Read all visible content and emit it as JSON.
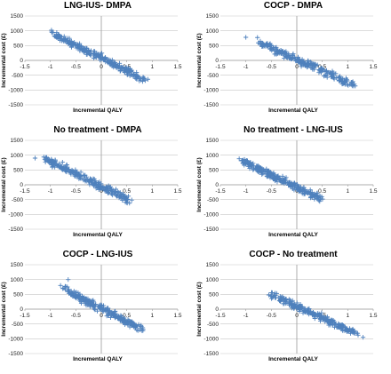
{
  "chart_data": [
    {
      "type": "scatter",
      "title": "LNG-IUS- DMPA",
      "xlabel": "Incremental QALY",
      "ylabel": "Incremental cost (£)",
      "xlim": [
        -1.5,
        1.5
      ],
      "ylim": [
        -1500,
        1500
      ],
      "xticks": [
        "-1.5",
        "-1",
        "-0.5",
        "0",
        "0.5",
        "1",
        "1.5"
      ],
      "yticks": [
        "1500",
        "1000",
        "500",
        "0",
        "-500",
        "-1000",
        "-1500"
      ],
      "marker": "+",
      "color": "#4f81bd",
      "trend": {
        "x_from": -0.95,
        "x_to": 0.85,
        "slope": -850,
        "intercept": 80,
        "spread_x": 0.18,
        "spread_y": 90
      },
      "points": [
        [
          -0.92,
          820
        ],
        [
          -0.75,
          690
        ],
        [
          -0.6,
          560
        ],
        [
          -0.4,
          400
        ],
        [
          -0.2,
          240
        ],
        [
          0.0,
          60
        ],
        [
          0.2,
          -100
        ],
        [
          0.4,
          -250
        ],
        [
          0.55,
          -380
        ],
        [
          0.7,
          -520
        ],
        [
          0.82,
          -560
        ]
      ]
    },
    {
      "type": "scatter",
      "title": "COCP - DMPA",
      "xlabel": "Incremental QALY",
      "ylabel": "Incremental cost (£)",
      "xlim": [
        -1.5,
        1.5
      ],
      "ylim": [
        -1500,
        1500
      ],
      "xticks": [
        "-1.5",
        "-1",
        "-0.5",
        "0",
        "0.5",
        "1",
        "1.5"
      ],
      "yticks": [
        "1500",
        "1000",
        "500",
        "0",
        "-500",
        "-1000",
        "-1500"
      ],
      "marker": "+",
      "color": "#4f81bd",
      "trend": {
        "x_from": -0.7,
        "x_to": 1.15,
        "slope": -780,
        "intercept": 30,
        "spread_x": 0.18,
        "spread_y": 90
      },
      "points": [
        [
          -1.0,
          780
        ],
        [
          -0.65,
          560
        ],
        [
          -0.4,
          380
        ],
        [
          -0.2,
          220
        ],
        [
          0.0,
          40
        ],
        [
          0.3,
          -200
        ],
        [
          0.6,
          -440
        ],
        [
          0.9,
          -620
        ],
        [
          1.1,
          -720
        ]
      ]
    },
    {
      "type": "scatter",
      "title": "No treatment - DMPA",
      "xlabel": "Incremental QALY",
      "ylabel": "Incremental cost (£)",
      "xlim": [
        -1.5,
        1.5
      ],
      "ylim": [
        -1500,
        1500
      ],
      "xticks": [
        "-1.5",
        "-1",
        "-0.5",
        "0",
        "0.5",
        "1",
        "1.5"
      ],
      "yticks": [
        "1500",
        "1000",
        "500",
        "0",
        "-500",
        "-1000",
        "-1500"
      ],
      "marker": "+",
      "color": "#4f81bd",
      "trend": {
        "x_from": -1.1,
        "x_to": 0.55,
        "slope": -850,
        "intercept": -60,
        "spread_x": 0.18,
        "spread_y": 90
      },
      "points": [
        [
          -1.3,
          900
        ],
        [
          -1.05,
          800
        ],
        [
          -0.8,
          620
        ],
        [
          -0.5,
          370
        ],
        [
          -0.2,
          120
        ],
        [
          0.0,
          -50
        ],
        [
          0.25,
          -280
        ],
        [
          0.45,
          -460
        ],
        [
          0.5,
          -600
        ]
      ]
    },
    {
      "type": "scatter",
      "title": "No treatment - LNG-IUS",
      "xlabel": "Incremental QALY",
      "ylabel": "Incremental cost (£)",
      "xlim": [
        -1.5,
        1.5
      ],
      "ylim": [
        -1500,
        1500
      ],
      "xticks": [
        "-1.5",
        "-1",
        "-0.5",
        "0",
        "0.5",
        "1",
        "1.5"
      ],
      "yticks": [
        "1500",
        "1000",
        "500",
        "0",
        "-500",
        "-1000",
        "-1500"
      ],
      "marker": "+",
      "color": "#4f81bd",
      "trend": {
        "x_from": -1.05,
        "x_to": 0.45,
        "slope": -830,
        "intercept": -90,
        "spread_x": 0.18,
        "spread_y": 90
      },
      "points": [
        [
          -1.0,
          800
        ],
        [
          -0.75,
          560
        ],
        [
          -0.5,
          330
        ],
        [
          -0.25,
          110
        ],
        [
          0.0,
          -100
        ],
        [
          0.2,
          -270
        ],
        [
          0.4,
          -420
        ],
        [
          0.45,
          -560
        ]
      ]
    },
    {
      "type": "scatter",
      "title": "COCP - LNG-IUS",
      "xlabel": "Incremental QALY",
      "ylabel": "Incremental cost (£)",
      "xlim": [
        -1.5,
        1.5
      ],
      "ylim": [
        -1500,
        1500
      ],
      "xticks": [
        "-1.5",
        "-1",
        "-0.5",
        "0",
        "0.5",
        "1",
        "1.5"
      ],
      "yticks": [
        "1500",
        "1000",
        "500",
        "0",
        "-500",
        "-1000",
        "-1500"
      ],
      "marker": "+",
      "color": "#4f81bd",
      "trend": {
        "x_from": -0.7,
        "x_to": 0.75,
        "slope": -880,
        "intercept": 20,
        "spread_x": 0.18,
        "spread_y": 90
      },
      "points": [
        [
          -0.8,
          800
        ],
        [
          -0.65,
          1000
        ],
        [
          -0.5,
          560
        ],
        [
          -0.25,
          280
        ],
        [
          0.0,
          30
        ],
        [
          0.25,
          -200
        ],
        [
          0.5,
          -420
        ],
        [
          0.65,
          -560
        ],
        [
          0.72,
          -720
        ]
      ]
    },
    {
      "type": "scatter",
      "title": "COCP - No treatment",
      "xlabel": "Incremental QALY",
      "ylabel": "Incremental cost (£)",
      "xlim": [
        -1.5,
        1.5
      ],
      "ylim": [
        -1500,
        1500
      ],
      "xticks": [
        "-1.5",
        "-1",
        "-0.5",
        "0",
        "0.5",
        "1",
        "1.5"
      ],
      "yticks": [
        "1500",
        "1000",
        "500",
        "0",
        "-500",
        "-1000",
        "-1500"
      ],
      "marker": "+",
      "color": "#4f81bd",
      "trend": {
        "x_from": -0.45,
        "x_to": 1.15,
        "slope": -780,
        "intercept": 90,
        "spread_x": 0.18,
        "spread_y": 90
      },
      "points": [
        [
          -0.55,
          480
        ],
        [
          -0.3,
          340
        ],
        [
          0.0,
          100
        ],
        [
          0.3,
          -140
        ],
        [
          0.6,
          -380
        ],
        [
          0.9,
          -600
        ],
        [
          1.1,
          -760
        ],
        [
          1.3,
          -950
        ]
      ]
    }
  ]
}
